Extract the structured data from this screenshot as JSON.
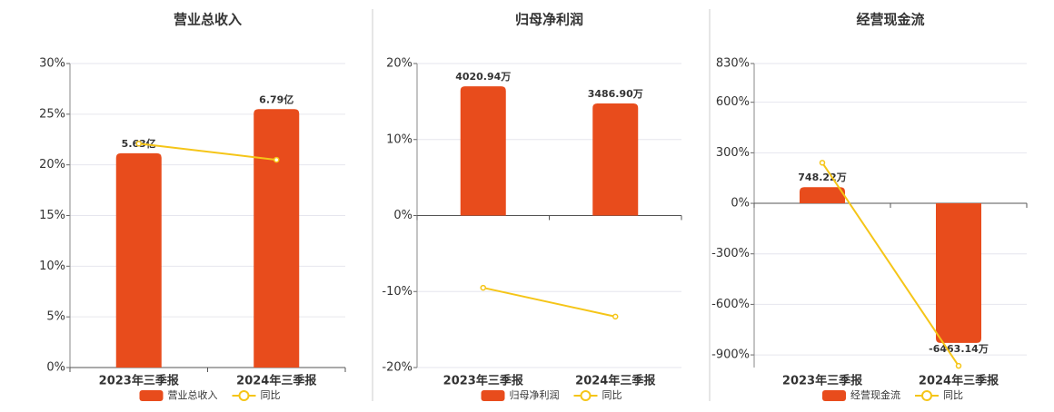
{
  "chart_data": [
    {
      "type": "bar",
      "title": "营业总收入",
      "categories": [
        "2023年三季报",
        "2024年三季报"
      ],
      "series": [
        {
          "name": "营业总收入",
          "color": "#e84c1c",
          "values": [
            5.63,
            6.79
          ],
          "value_labels": [
            "5.63亿",
            "6.79亿"
          ]
        },
        {
          "name": "同比",
          "type": "line",
          "color": "#f5c518",
          "values": [
            22.1,
            20.5
          ]
        }
      ],
      "ylim": [
        0,
        30
      ],
      "yticks": [
        {
          "value": 0,
          "label": "0%"
        },
        {
          "value": 5,
          "label": "5%"
        },
        {
          "value": 10,
          "label": "10%"
        },
        {
          "value": 15,
          "label": "15%"
        },
        {
          "value": 20,
          "label": "20%"
        },
        {
          "value": 25,
          "label": "25%"
        },
        {
          "value": 30,
          "label": "30%"
        }
      ],
      "grid": true
    },
    {
      "type": "bar",
      "title": "归母净利润",
      "categories": [
        "2023年三季报",
        "2024年三季报"
      ],
      "series": [
        {
          "name": "归母净利润",
          "color": "#e84c1c",
          "values": [
            4020.94,
            3486.9
          ],
          "value_labels": [
            "4020.94万",
            "3486.90万"
          ]
        },
        {
          "name": "同比",
          "type": "line",
          "color": "#f5c518",
          "values": [
            -9.5,
            -13.3
          ]
        }
      ],
      "ylim": [
        -20,
        20
      ],
      "yticks": [
        {
          "value": -20,
          "label": "-20%"
        },
        {
          "value": -10,
          "label": "-10%"
        },
        {
          "value": 0,
          "label": "0%"
        },
        {
          "value": 10,
          "label": "10%"
        },
        {
          "value": 20,
          "label": "20%"
        }
      ],
      "grid": true
    },
    {
      "type": "bar",
      "title": "经营现金流",
      "categories": [
        "2023年三季报",
        "2024年三季报"
      ],
      "series": [
        {
          "name": "经营现金流",
          "color": "#e84c1c",
          "values": [
            748.22,
            -6463.14
          ],
          "value_labels": [
            "748.22万",
            "-6463.14万"
          ]
        },
        {
          "name": "同比",
          "type": "line",
          "color": "#f5c518",
          "values": [
            241,
            -965
          ]
        }
      ],
      "ylim": [
        -975,
        830
      ],
      "yticks": [
        {
          "value": -900,
          "label": "-900%"
        },
        {
          "value": -600,
          "label": "-600%"
        },
        {
          "value": -300,
          "label": "-300%"
        },
        {
          "value": 0,
          "label": "0%"
        },
        {
          "value": 300,
          "label": "300%"
        },
        {
          "value": 600,
          "label": "600%"
        },
        {
          "value": 830,
          "label": "830%"
        }
      ],
      "grid": true
    }
  ]
}
